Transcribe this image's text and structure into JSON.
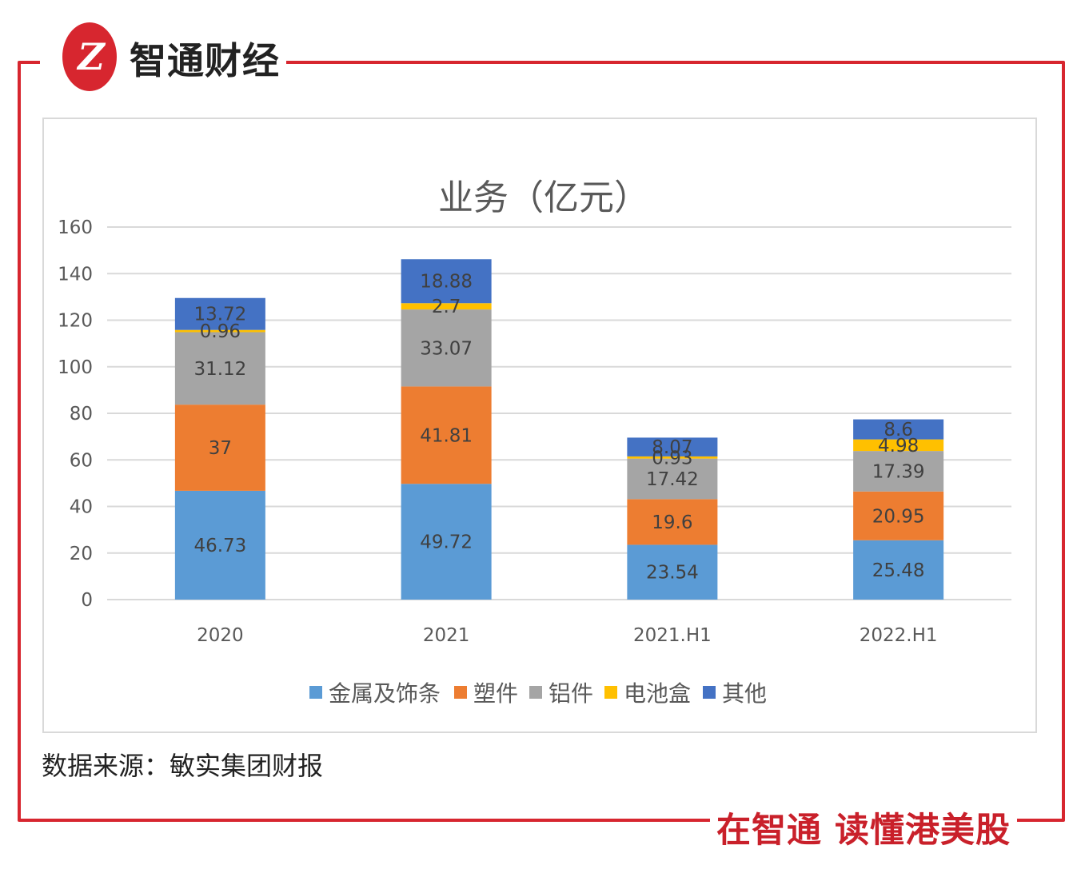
{
  "brand": {
    "logo_mark": "Z",
    "name": "智通财经",
    "slogan": "在智通 读懂港美股"
  },
  "colors": {
    "frame": "#d7262f",
    "metal": "#5b9bd5",
    "plastic": "#ed7d31",
    "aluminum": "#a5a5a5",
    "battery": "#ffc000",
    "other": "#4472c4",
    "grid": "#d9d9d9"
  },
  "source_note": "数据来源：敏实集团财报",
  "chart_data": {
    "type": "bar",
    "stacked": true,
    "title": "业务（亿元）",
    "xlabel": "",
    "ylabel": "",
    "ylim": [
      0,
      160
    ],
    "yticks": [
      0,
      20,
      40,
      60,
      80,
      100,
      120,
      140,
      160
    ],
    "categories": [
      "2020",
      "2021",
      "2021.H1",
      "2022.H1"
    ],
    "legend_position": "bottom",
    "series": [
      {
        "name": "金属及饰条",
        "key": "metal",
        "values": [
          46.73,
          49.72,
          23.54,
          25.48
        ],
        "labels": [
          "46.73",
          "49.72",
          "23.54",
          "25.48"
        ]
      },
      {
        "name": "塑件",
        "key": "plastic",
        "values": [
          37,
          41.81,
          19.6,
          20.95
        ],
        "labels": [
          "37",
          "41.81",
          "19.6",
          "20.95"
        ]
      },
      {
        "name": "铝件",
        "key": "aluminum",
        "values": [
          31.12,
          33.07,
          17.42,
          17.39
        ],
        "labels": [
          "31.12",
          "33.07",
          "17.42",
          "17.39"
        ]
      },
      {
        "name": "电池盒",
        "key": "battery",
        "values": [
          0.96,
          2.7,
          0.93,
          4.98
        ],
        "labels": [
          "0.96",
          "2.7",
          "0.93",
          "4.98"
        ]
      },
      {
        "name": "其他",
        "key": "other",
        "values": [
          13.72,
          18.88,
          8.07,
          8.6
        ],
        "labels": [
          "13.72",
          "18.88",
          "8.07",
          "8.6"
        ]
      }
    ]
  }
}
